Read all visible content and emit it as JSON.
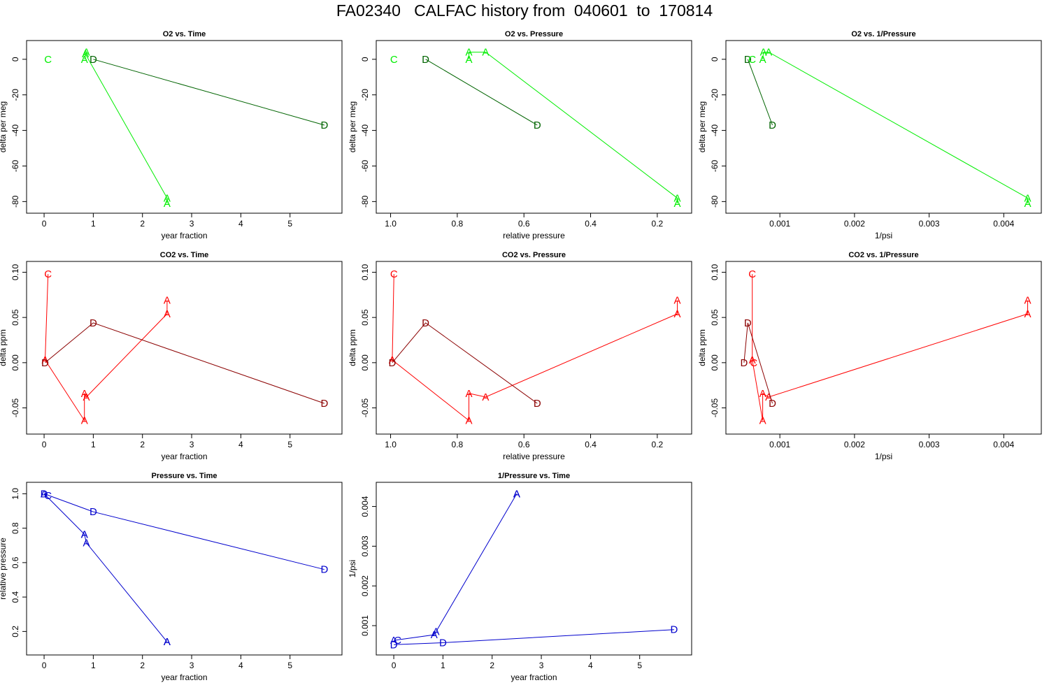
{
  "title": "FA02340   CALFAC history from  040601  to  170814",
  "colors": {
    "o2_d": "#006400",
    "o2_other": "#00EE00",
    "co2_d": "#8B0000",
    "co2_other": "#FF0000",
    "press": "#0000CD"
  },
  "chart_data": [
    {
      "type": "line",
      "title": "O2 vs. Time",
      "xlabel": "year fraction",
      "ylabel": "delta per meg",
      "xlim": [
        -0.2,
        5.9
      ],
      "ylim": [
        -83,
        7
      ],
      "xticks": [
        0,
        1,
        2,
        3,
        4,
        5
      ],
      "xtick_labels": [
        "0",
        "1",
        "2",
        "3",
        "4",
        "5"
      ],
      "yticks": [
        0,
        -20,
        -40,
        -60,
        -80
      ],
      "ytick_labels": [
        "0",
        "-20",
        "-40",
        "-60",
        "-80"
      ],
      "series": [
        {
          "color": "#00EE00",
          "line": true,
          "points": [
            [
              0.82,
              0
            ],
            [
              0.86,
              4
            ],
            [
              0.84,
              3
            ],
            [
              2.5,
              -78
            ],
            [
              2.5,
              -81
            ]
          ],
          "labels": [
            "A",
            "A",
            "A",
            "A",
            "A"
          ]
        },
        {
          "color": "#006400",
          "line": true,
          "points": [
            [
              1.0,
              0
            ],
            [
              5.7,
              -37
            ]
          ],
          "labels": [
            "D",
            "D"
          ]
        },
        {
          "color": "#00EE00",
          "line": false,
          "points": [
            [
              0.08,
              0
            ]
          ],
          "labels": [
            "C"
          ]
        }
      ]
    },
    {
      "type": "line",
      "title": "O2 vs. Pressure",
      "xlabel": "relative pressure",
      "ylabel": "delta per meg",
      "xlim": [
        1.02,
        0.12
      ],
      "ylim": [
        -83,
        7
      ],
      "xticks": [
        1.0,
        0.8,
        0.6,
        0.4,
        0.2
      ],
      "xtick_labels": [
        "1.0",
        "0.8",
        "0.6",
        "0.4",
        "0.2"
      ],
      "yticks": [
        0,
        -20,
        -40,
        -60,
        -80
      ],
      "ytick_labels": [
        "0",
        "-20",
        "-40",
        "-60",
        "-80"
      ],
      "series": [
        {
          "color": "#00EE00",
          "line": true,
          "points": [
            [
              0.765,
              0
            ],
            [
              0.765,
              4
            ],
            [
              0.715,
              4
            ],
            [
              0.14,
              -78
            ],
            [
              0.14,
              -81
            ]
          ],
          "labels": [
            "A",
            "A",
            "A",
            "A",
            "A"
          ]
        },
        {
          "color": "#006400",
          "line": true,
          "points": [
            [
              0.895,
              0
            ],
            [
              0.56,
              -37
            ]
          ],
          "labels": [
            "D",
            "D"
          ]
        },
        {
          "color": "#00EE00",
          "line": false,
          "points": [
            [
              0.99,
              0
            ]
          ],
          "labels": [
            "C"
          ]
        }
      ]
    },
    {
      "type": "line",
      "title": "O2 vs. 1/Pressure",
      "xlabel": "1/psi",
      "ylabel": "delta per meg",
      "xlim": [
        0.00038,
        0.0044
      ],
      "ylim": [
        -83,
        7
      ],
      "xticks": [
        0.001,
        0.002,
        0.003,
        0.004
      ],
      "xtick_labels": [
        "0.001",
        "0.002",
        "0.003",
        "0.004"
      ],
      "yticks": [
        0,
        -20,
        -40,
        -60,
        -80
      ],
      "ytick_labels": [
        "0",
        "-20",
        "-40",
        "-60",
        "-80"
      ],
      "series": [
        {
          "color": "#00EE00",
          "line": true,
          "points": [
            [
              0.00077,
              0
            ],
            [
              0.00078,
              4
            ],
            [
              0.00085,
              4
            ],
            [
              0.00432,
              -78
            ],
            [
              0.00432,
              -81
            ]
          ],
          "labels": [
            "A",
            "A",
            "A",
            "A",
            "A"
          ]
        },
        {
          "color": "#006400",
          "line": true,
          "points": [
            [
              0.00057,
              0
            ],
            [
              0.0009,
              -37
            ]
          ],
          "labels": [
            "D",
            "D"
          ]
        },
        {
          "color": "#00EE00",
          "line": false,
          "points": [
            [
              0.00063,
              0
            ]
          ],
          "labels": [
            "C"
          ]
        }
      ]
    },
    {
      "type": "line",
      "title": "CO2 vs. Time",
      "xlabel": "year fraction",
      "ylabel": "delta ppm",
      "xlim": [
        -0.2,
        5.9
      ],
      "ylim": [
        -0.072,
        0.105
      ],
      "xticks": [
        0,
        1,
        2,
        3,
        4,
        5
      ],
      "xtick_labels": [
        "0",
        "1",
        "2",
        "3",
        "4",
        "5"
      ],
      "yticks": [
        0.1,
        0.05,
        0.0,
        -0.05
      ],
      "ytick_labels": [
        "0.10",
        "0.05",
        "0.00",
        "-0.05"
      ],
      "series": [
        {
          "color": "#FF0000",
          "line": true,
          "points": [
            [
              0.08,
              0.098
            ],
            [
              0.02,
              0.003
            ],
            [
              0.82,
              -0.064
            ],
            [
              0.82,
              -0.034
            ],
            [
              0.86,
              -0.038
            ],
            [
              2.5,
              0.054
            ],
            [
              2.5,
              0.069
            ]
          ],
          "labels": [
            "C",
            "A",
            "A",
            "A",
            "A",
            "A",
            "A"
          ]
        },
        {
          "color": "#8B0000",
          "line": true,
          "points": [
            [
              0.02,
              0.0
            ],
            [
              1.0,
              0.044
            ],
            [
              5.7,
              -0.045
            ]
          ],
          "labels": [
            "D",
            "D",
            "D"
          ]
        }
      ]
    },
    {
      "type": "line",
      "title": "CO2 vs. Pressure",
      "xlabel": "relative pressure",
      "ylabel": "delta ppm",
      "xlim": [
        1.02,
        0.12
      ],
      "ylim": [
        -0.072,
        0.105
      ],
      "xticks": [
        1.0,
        0.8,
        0.6,
        0.4,
        0.2
      ],
      "xtick_labels": [
        "1.0",
        "0.8",
        "0.6",
        "0.4",
        "0.2"
      ],
      "yticks": [
        0.1,
        0.05,
        0.0,
        -0.05
      ],
      "ytick_labels": [
        "0.10",
        "0.05",
        "0.00",
        "-0.05"
      ],
      "series": [
        {
          "color": "#FF0000",
          "line": true,
          "points": [
            [
              0.99,
              0.098
            ],
            [
              0.995,
              0.003
            ],
            [
              0.765,
              -0.064
            ],
            [
              0.765,
              -0.034
            ],
            [
              0.715,
              -0.038
            ],
            [
              0.14,
              0.054
            ],
            [
              0.14,
              0.069
            ]
          ],
          "labels": [
            "C",
            "A",
            "A",
            "A",
            "A",
            "A",
            "A"
          ]
        },
        {
          "color": "#8B0000",
          "line": true,
          "points": [
            [
              0.995,
              0.0
            ],
            [
              0.895,
              0.044
            ],
            [
              0.56,
              -0.045
            ]
          ],
          "labels": [
            "D",
            "D",
            "D"
          ]
        }
      ]
    },
    {
      "type": "line",
      "title": "CO2 vs. 1/Pressure",
      "xlabel": "1/psi",
      "ylabel": "delta ppm",
      "xlim": [
        0.00038,
        0.0044
      ],
      "ylim": [
        -0.072,
        0.105
      ],
      "xticks": [
        0.001,
        0.002,
        0.003,
        0.004
      ],
      "xtick_labels": [
        "0.001",
        "0.002",
        "0.003",
        "0.004"
      ],
      "yticks": [
        0.1,
        0.05,
        0.0,
        -0.05
      ],
      "ytick_labels": [
        "0.10",
        "0.05",
        "0.00",
        "-0.05"
      ],
      "series": [
        {
          "color": "#FF0000",
          "line": true,
          "points": [
            [
              0.00063,
              0.098
            ],
            [
              0.00063,
              0.003
            ],
            [
              0.00077,
              -0.064
            ],
            [
              0.00077,
              -0.034
            ],
            [
              0.00085,
              -0.038
            ],
            [
              0.00432,
              0.054
            ],
            [
              0.00432,
              0.069
            ]
          ],
          "labels": [
            "C",
            "A",
            "A",
            "A",
            "A",
            "A",
            "A"
          ]
        },
        {
          "color": "#8B0000",
          "line": true,
          "points": [
            [
              0.00052,
              0.0
            ],
            [
              0.00057,
              0.044
            ],
            [
              0.0009,
              -0.045
            ]
          ],
          "labels": [
            "D",
            "D",
            "D"
          ]
        },
        {
          "color": "#FF0000",
          "line": false,
          "points": [
            [
              0.00065,
              0.0
            ]
          ],
          "labels": [
            "C"
          ]
        }
      ]
    },
    {
      "type": "line",
      "title": "Pressure vs. Time",
      "xlabel": "year fraction",
      "ylabel": "relative pressure",
      "xlim": [
        -0.2,
        5.9
      ],
      "ylim": [
        0.1,
        1.03
      ],
      "xticks": [
        0,
        1,
        2,
        3,
        4,
        5
      ],
      "xtick_labels": [
        "0",
        "1",
        "2",
        "3",
        "4",
        "5"
      ],
      "yticks": [
        1.0,
        0.8,
        0.6,
        0.4,
        0.2
      ],
      "ytick_labels": [
        "1.0",
        "0.8",
        "0.6",
        "0.4",
        "0.2"
      ],
      "series": [
        {
          "color": "#0000CD",
          "line": true,
          "points": [
            [
              0.0,
              1.0
            ],
            [
              0.82,
              0.765
            ],
            [
              0.82,
              0.765
            ],
            [
              0.86,
              0.715
            ],
            [
              2.5,
              0.14
            ],
            [
              2.5,
              0.14
            ]
          ],
          "labels": [
            "A",
            "A",
            "A",
            "A",
            "A",
            "A"
          ]
        },
        {
          "color": "#0000CD",
          "line": true,
          "points": [
            [
              0.0,
              1.0
            ],
            [
              1.0,
              0.895
            ],
            [
              5.7,
              0.56
            ]
          ],
          "labels": [
            "D",
            "D",
            "D"
          ]
        },
        {
          "color": "#0000CD",
          "line": false,
          "points": [
            [
              0.08,
              0.99
            ]
          ],
          "labels": [
            "C"
          ]
        }
      ]
    },
    {
      "type": "line",
      "title": "1/Pressure vs. Time",
      "xlabel": "year fraction",
      "ylabel": "1/psi",
      "xlim": [
        -0.2,
        5.9
      ],
      "ylim": [
        0.00042,
        0.00445
      ],
      "xticks": [
        0,
        1,
        2,
        3,
        4,
        5
      ],
      "xtick_labels": [
        "0",
        "1",
        "2",
        "3",
        "4",
        "5"
      ],
      "yticks": [
        0.001,
        0.002,
        0.003,
        0.004
      ],
      "ytick_labels": [
        "0.001",
        "0.002",
        "0.003",
        "0.004"
      ],
      "series": [
        {
          "color": "#0000CD",
          "line": true,
          "points": [
            [
              0.0,
              0.00063
            ],
            [
              0.82,
              0.00077
            ],
            [
              0.86,
              0.00085
            ],
            [
              2.5,
              0.00432
            ],
            [
              2.5,
              0.00432
            ]
          ],
          "labels": [
            "A",
            "A",
            "A",
            "A",
            "A"
          ]
        },
        {
          "color": "#0000CD",
          "line": true,
          "points": [
            [
              0.0,
              0.00052
            ],
            [
              1.0,
              0.00057
            ],
            [
              5.7,
              0.0009
            ]
          ],
          "labels": [
            "D",
            "D",
            "D"
          ]
        },
        {
          "color": "#0000CD",
          "line": false,
          "points": [
            [
              0.08,
              0.00063
            ]
          ],
          "labels": [
            "C"
          ]
        }
      ]
    }
  ]
}
